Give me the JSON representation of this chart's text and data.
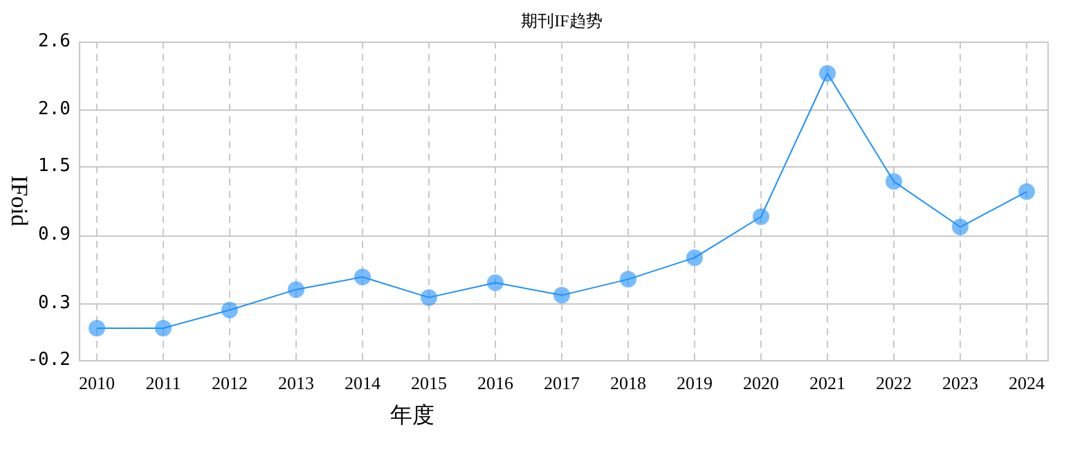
{
  "chart_data": {
    "type": "line",
    "title": "期刊IF趋势",
    "xlabel": "年度",
    "ylabel": "IFoid",
    "categories": [
      "2010",
      "2011",
      "2012",
      "2013",
      "2014",
      "2015",
      "2016",
      "2017",
      "2018",
      "2019",
      "2020",
      "2021",
      "2022",
      "2023",
      "2024"
    ],
    "series": [
      {
        "color": "#1e90ff",
        "values": [
          0.08,
          0.08,
          0.24,
          0.42,
          0.53,
          0.35,
          0.48,
          0.37,
          0.51,
          0.7,
          1.06,
          2.32,
          1.37,
          0.97,
          1.28
        ]
      }
    ],
    "ylim": [
      -0.2,
      2.6
    ],
    "yticks": [
      -0.2,
      0.3,
      0.9,
      1.5,
      {
        "value": 2.0,
        "label": "2.0"
      },
      2.6
    ],
    "grid": true,
    "legend": false,
    "marker": "circle",
    "line_style": "solid"
  }
}
